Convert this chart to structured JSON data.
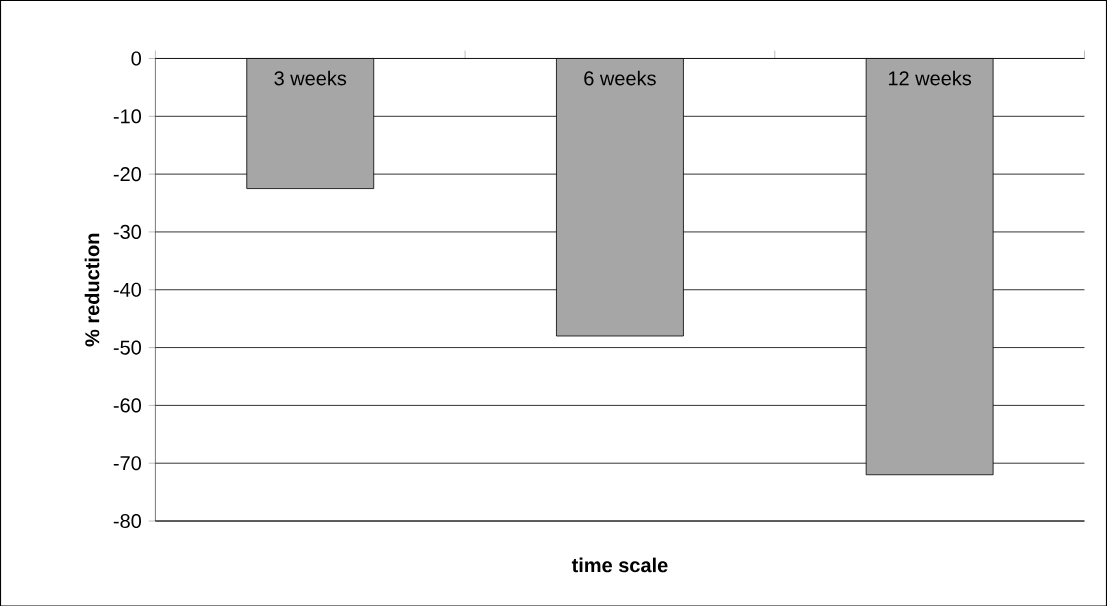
{
  "chart_data": {
    "type": "bar",
    "xlabel": "time scale",
    "ylabel": "% reduction",
    "categories": [
      "3 weeks",
      "6 weeks",
      "12 weeks"
    ],
    "values": [
      -22.5,
      -48,
      -72
    ],
    "color": "#a6a6a6",
    "ylim": [
      -80,
      0
    ],
    "yticks": [
      0,
      -10,
      -20,
      -30,
      -40,
      -50,
      -60,
      -70,
      -80
    ],
    "grid": "y"
  }
}
